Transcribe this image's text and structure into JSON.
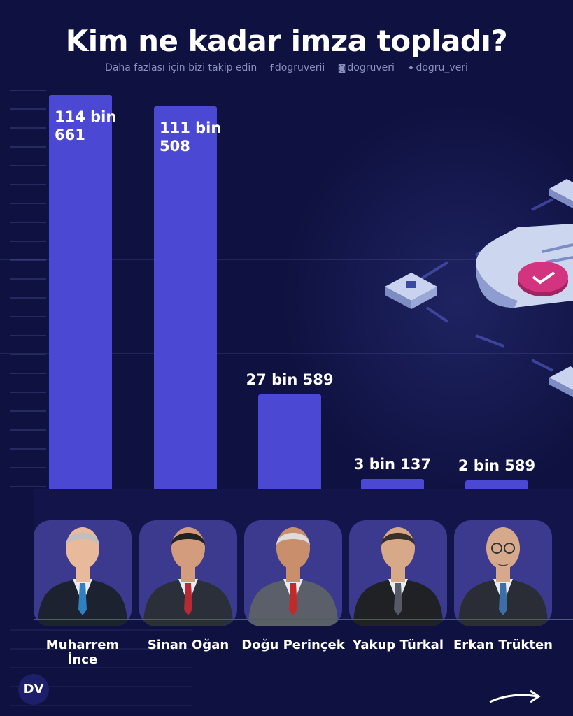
{
  "chart_data": {
    "type": "bar",
    "title": "Kim ne kadar imza topladı?",
    "categories": [
      "Muharrem İnce",
      "Sinan Oğan",
      "Doğu Perinçek",
      "Yakup Türkal",
      "Erkan Trükten"
    ],
    "values": [
      114661,
      111508,
      27589,
      3137,
      2589
    ],
    "labels": [
      [
        "114 bin",
        "661"
      ],
      [
        "111 bin",
        "508"
      ],
      [
        "27 bin 589"
      ],
      [
        "3 bin 137"
      ],
      [
        "2 bin 589"
      ]
    ],
    "ylim": [
      0,
      120000
    ],
    "bar_color": "#4b48d3",
    "grid": true
  },
  "header": {
    "title": "Kim ne kadar imza topladı?",
    "subtitle": "Daha fazlası için bizi takip edin",
    "facebook": "dogruverii",
    "instagram": "dogruveri",
    "twitter": "dogru_veri"
  },
  "footer": {
    "logo_text": "DV"
  },
  "colors": {
    "background": "#0f1140",
    "bar": "#4b48d3",
    "card": "#3b3a8e",
    "accent_pink": "#d4347f"
  },
  "icons": [
    "facebook-icon",
    "instagram-icon",
    "twitter-icon",
    "next-arrow-icon"
  ]
}
